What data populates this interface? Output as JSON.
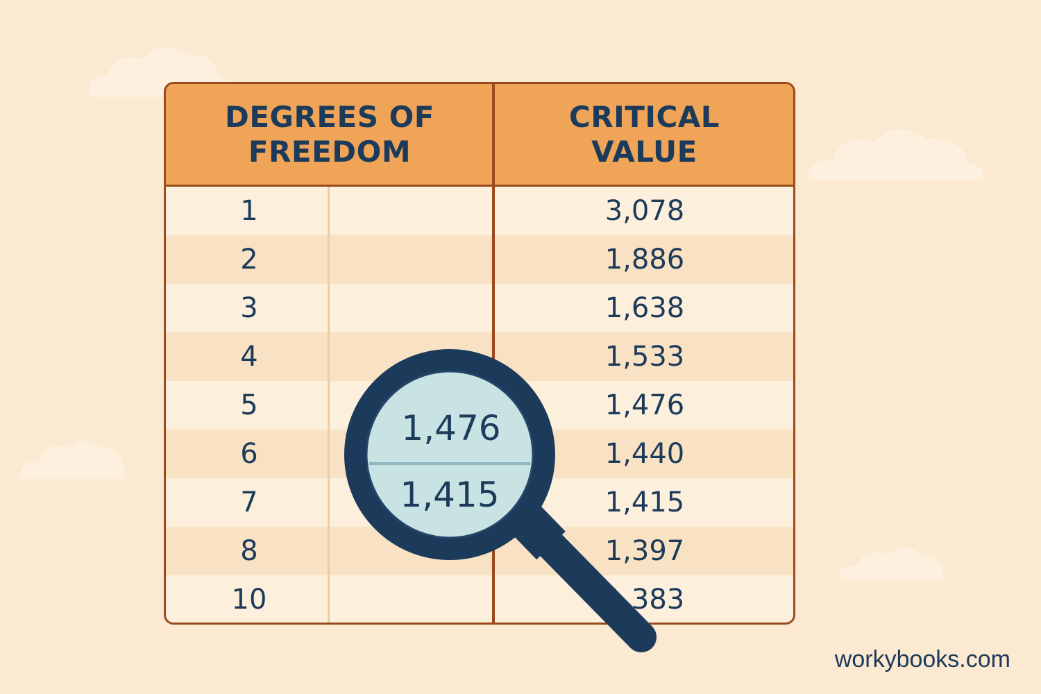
{
  "colors": {
    "background": "#fbe9d1",
    "header": "#f0a457",
    "border": "#9a4a1c",
    "text": "#1c3a5a",
    "row_light": "#fcefdc",
    "row_dark": "#f9e2c4",
    "lens": "#c9e2e3"
  },
  "table": {
    "header": {
      "df_line1": "DEGREES OF",
      "df_line2": "FREEDOM",
      "cv_line1": "CRITICAL",
      "cv_line2": "VALUE"
    },
    "rows": [
      {
        "df": "1",
        "cv": "3,078"
      },
      {
        "df": "2",
        "cv": "1,886"
      },
      {
        "df": "3",
        "cv": "1,638"
      },
      {
        "df": "4",
        "cv": "1,533"
      },
      {
        "df": "5",
        "cv": "1,476"
      },
      {
        "df": "6",
        "cv": "1,440"
      },
      {
        "df": "7",
        "cv": "1,415"
      },
      {
        "df": "8",
        "cv": "1,397"
      },
      {
        "df": "10",
        "cv": "1,383"
      }
    ]
  },
  "magnifier": {
    "icon": "magnifying-glass-icon",
    "top_value": "1,476",
    "bottom_value": "1,415"
  },
  "footer": {
    "site": "workybooks.com"
  }
}
